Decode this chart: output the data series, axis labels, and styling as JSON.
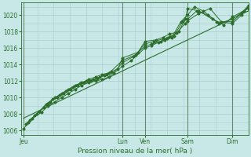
{
  "bg_color": "#c8e8e8",
  "grid_major_color": "#aacccc",
  "grid_minor_color": "#b8d8d8",
  "vline_color": "#557755",
  "line_color": "#2d6e2d",
  "title": "Pression niveau de la mer( hPa )",
  "ylim": [
    1005.5,
    1021.5
  ],
  "yticks": [
    1006,
    1008,
    1010,
    1012,
    1014,
    1016,
    1018,
    1020
  ],
  "xtick_labels": [
    "Jeu",
    "Lun",
    "Ven",
    "Sam",
    "Dim"
  ],
  "xtick_positions": [
    0.0,
    0.44,
    0.54,
    0.73,
    0.93
  ],
  "vline_positions": [
    0.0,
    0.44,
    0.54,
    0.73,
    0.93
  ],
  "xmin": -0.01,
  "xmax": 1.0,
  "straight_line_x": [
    0.0,
    1.0
  ],
  "straight_line_y": [
    1007.5,
    1020.5
  ],
  "series": [
    {
      "x": [
        0.0,
        0.04,
        0.08,
        0.11,
        0.14,
        0.17,
        0.2,
        0.23,
        0.26,
        0.29,
        0.32,
        0.35,
        0.38,
        0.44,
        0.48,
        0.54,
        0.57,
        0.6,
        0.63,
        0.66,
        0.7,
        0.73,
        0.76,
        0.8,
        0.86,
        0.93,
        0.97,
        1.0
      ],
      "y": [
        1006.2,
        1007.5,
        1008.2,
        1009.0,
        1009.5,
        1010.0,
        1010.5,
        1011.0,
        1011.5,
        1011.8,
        1012.0,
        1012.2,
        1012.5,
        1013.8,
        1014.5,
        1016.0,
        1016.3,
        1016.7,
        1017.0,
        1017.3,
        1019.2,
        1020.0,
        1021.0,
        1020.5,
        1019.2,
        1019.0,
        1020.0,
        1021.0
      ]
    },
    {
      "x": [
        0.02,
        0.06,
        0.1,
        0.13,
        0.16,
        0.19,
        0.22,
        0.25,
        0.28,
        0.31,
        0.34,
        0.37,
        0.4,
        0.44,
        0.49,
        0.54,
        0.57,
        0.61,
        0.64,
        0.67,
        0.71,
        0.73,
        0.77,
        0.82,
        0.87,
        0.93,
        0.97,
        1.0
      ],
      "y": [
        1007.0,
        1008.0,
        1009.2,
        1009.8,
        1010.3,
        1010.8,
        1011.3,
        1011.7,
        1012.0,
        1012.2,
        1012.5,
        1012.8,
        1013.0,
        1014.2,
        1015.0,
        1016.2,
        1016.5,
        1016.8,
        1017.2,
        1017.5,
        1019.3,
        1019.5,
        1020.5,
        1020.0,
        1019.0,
        1019.5,
        1020.3,
        1020.8
      ]
    },
    {
      "x": [
        0.01,
        0.05,
        0.09,
        0.12,
        0.15,
        0.18,
        0.21,
        0.24,
        0.27,
        0.3,
        0.33,
        0.36,
        0.39,
        0.44,
        0.5,
        0.54,
        0.58,
        0.62,
        0.65,
        0.68,
        0.72,
        0.73,
        0.78,
        0.83,
        0.88,
        0.93,
        0.98,
        1.0
      ],
      "y": [
        1006.8,
        1007.8,
        1008.8,
        1009.5,
        1010.0,
        1010.5,
        1011.0,
        1011.5,
        1011.8,
        1012.0,
        1012.3,
        1012.7,
        1013.2,
        1014.5,
        1015.2,
        1016.5,
        1016.8,
        1017.1,
        1017.4,
        1017.8,
        1019.0,
        1019.3,
        1020.2,
        1020.8,
        1019.2,
        1019.2,
        1020.5,
        1021.0
      ]
    },
    {
      "x": [
        0.03,
        0.07,
        0.11,
        0.14,
        0.17,
        0.2,
        0.23,
        0.26,
        0.29,
        0.32,
        0.35,
        0.38,
        0.42,
        0.44,
        0.51,
        0.54,
        0.59,
        0.62,
        0.65,
        0.69,
        0.72,
        0.73,
        0.78,
        0.84,
        0.89,
        0.93,
        0.98,
        1.0
      ],
      "y": [
        1007.3,
        1008.3,
        1009.3,
        1010.0,
        1010.5,
        1011.0,
        1011.5,
        1011.8,
        1012.2,
        1012.5,
        1012.8,
        1013.0,
        1013.5,
        1014.8,
        1015.5,
        1016.8,
        1017.0,
        1017.3,
        1017.7,
        1018.0,
        1019.5,
        1020.8,
        1020.5,
        1019.5,
        1018.8,
        1019.8,
        1020.5,
        1021.2
      ]
    }
  ]
}
